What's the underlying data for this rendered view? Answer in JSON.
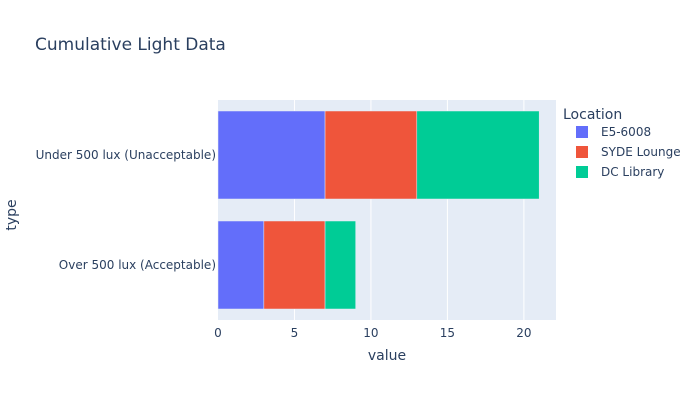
{
  "chart_data": {
    "type": "bar",
    "orientation": "horizontal",
    "barmode": "stack",
    "title": "Cumulative Light Data",
    "xlabel": "value",
    "ylabel": "type",
    "categories": [
      "Over 500 lux (Acceptable)",
      "Under 500 lux (Unacceptable)"
    ],
    "series": [
      {
        "name": "E5-6008",
        "values": [
          3,
          7
        ],
        "color": "#636efa"
      },
      {
        "name": "SYDE Lounge",
        "values": [
          4,
          6
        ],
        "color": "#ef553b"
      },
      {
        "name": "DC Library",
        "values": [
          2,
          8
        ],
        "color": "#00cc96"
      }
    ],
    "xlim": [
      0,
      22.1
    ],
    "xticks": [
      0,
      5,
      10,
      15,
      20
    ],
    "grid": true,
    "plot_background": "#e5ecf6",
    "legend": {
      "title": "Location",
      "placement": "right"
    }
  }
}
